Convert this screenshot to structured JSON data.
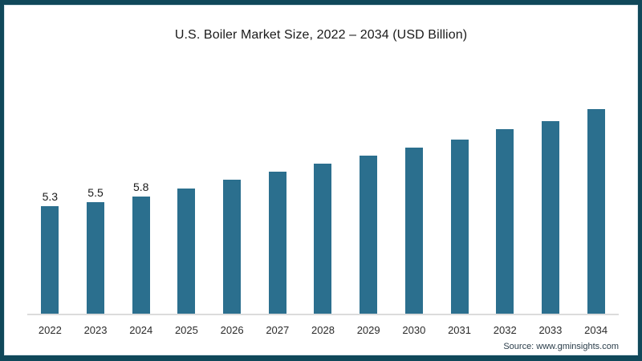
{
  "title": "U.S. Boiler Market Size, 2022 – 2034 (USD Billion)",
  "source_text": "Source: www.gminsights.com",
  "colors": {
    "frame": "#10485a",
    "bar": "#2b6f8e",
    "axis_line": "#dcdcdc",
    "title_text": "#1a1a1a",
    "tick_text": "#2b2b2b"
  },
  "chart_data": {
    "type": "bar",
    "title": "U.S. Boiler Market Size, 2022 – 2034 (USD Billion)",
    "categories": [
      "2022",
      "2023",
      "2024",
      "2025",
      "2026",
      "2027",
      "2028",
      "2029",
      "2030",
      "2031",
      "2032",
      "2033",
      "2034"
    ],
    "values": [
      5.3,
      5.5,
      5.8,
      6.2,
      6.6,
      7.0,
      7.4,
      7.8,
      8.2,
      8.6,
      9.1,
      9.5,
      10.1
    ],
    "data_labels": [
      "5.3",
      "5.5",
      "5.8",
      "",
      "",
      "",
      "",
      "",
      "",
      "",
      "",
      "",
      ""
    ],
    "xlabel": "",
    "ylabel": "",
    "ylim": [
      0,
      10.5
    ],
    "grid": false,
    "legend": false,
    "bar_color": "#2b6f8e"
  }
}
